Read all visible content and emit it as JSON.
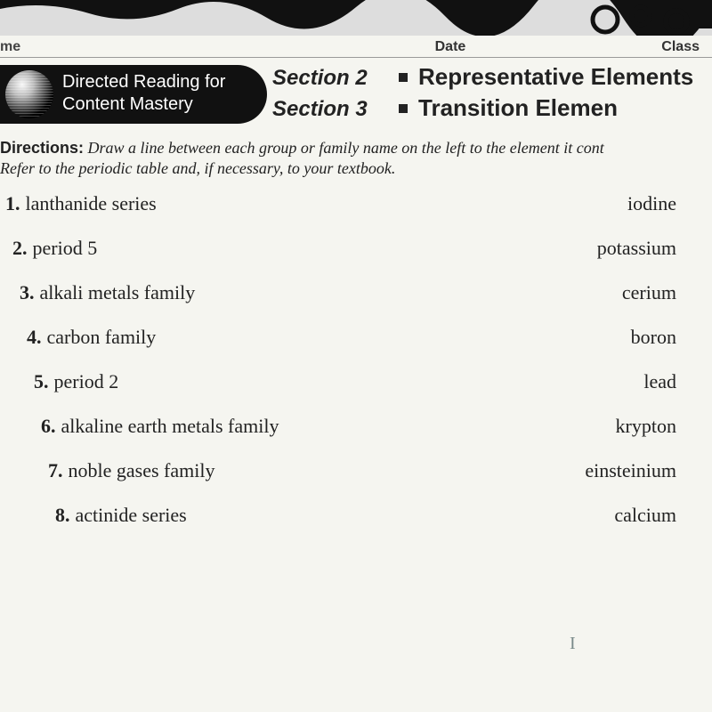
{
  "header": {
    "left": "me",
    "mid": "Date",
    "right": "Class"
  },
  "badge": {
    "line1": "Directed Reading for",
    "line2": "Content Mastery"
  },
  "sections": [
    {
      "label": "Section 2",
      "title": "Representative Elements"
    },
    {
      "label": "Section 3",
      "title": "Transition Elemen"
    }
  ],
  "directions": {
    "label": "Directions:",
    "text": "Draw a line between each group or family name on the left to the element it cont",
    "text2": "Refer to the periodic table and, if necessary, to your textbook."
  },
  "matches": {
    "left": [
      {
        "n": "1.",
        "t": "lanthanide series"
      },
      {
        "n": "2.",
        "t": "period 5"
      },
      {
        "n": "3.",
        "t": "alkali metals family"
      },
      {
        "n": "4.",
        "t": "carbon family"
      },
      {
        "n": "5.",
        "t": "period 2"
      },
      {
        "n": "6.",
        "t": "alkaline earth metals family"
      },
      {
        "n": "7.",
        "t": "noble gases family"
      },
      {
        "n": "8.",
        "t": "actinide series"
      }
    ],
    "right": [
      "iodine",
      "potassium",
      "cerium",
      "boron",
      "lead",
      "krypton",
      "einsteinium",
      "calcium"
    ]
  },
  "annotation": "I",
  "styling": {
    "page_bg": "#f5f5f0",
    "badge_bg": "#111111",
    "badge_fg": "#ffffff",
    "body_font": "Georgia",
    "heading_font": "Arial",
    "body_fontsize": 22,
    "section_label_fontsize": 24,
    "section_title_fontsize": 26,
    "directions_fontsize": 18,
    "row_spacing": 24,
    "left_indent_step": 8
  }
}
